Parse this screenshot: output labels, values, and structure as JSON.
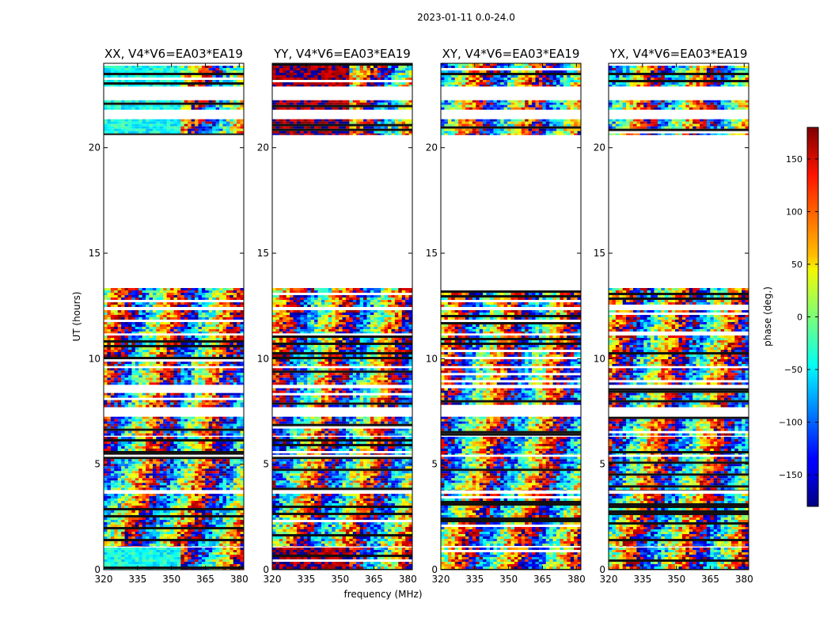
{
  "chart_data": {
    "type": "heatmap",
    "suptitle": "2023-01-11 0.0-24.0",
    "xlabel": "frequency (MHz)",
    "ylabel": "UT (hours)",
    "xlim": [
      320,
      382
    ],
    "ylim": [
      0,
      24
    ],
    "x_ticks": [
      320,
      335,
      350,
      365,
      380
    ],
    "y_ticks": [
      0,
      5,
      10,
      15,
      20
    ],
    "panels": [
      {
        "title": "XX, V4*V6=EA03*EA19",
        "low_freq_phase": -40
      },
      {
        "title": "YY, V4*V6=EA03*EA19",
        "low_freq_phase": 170
      },
      {
        "title": "XY, V4*V6=EA03*EA19",
        "low_freq_phase": null
      },
      {
        "title": "YX, V4*V6=EA03*EA19",
        "low_freq_phase": null
      }
    ],
    "data_blocks_ut_hours": [
      [
        0.0,
        1.05
      ],
      [
        1.1,
        3.6
      ],
      [
        3.75,
        5.35
      ],
      [
        5.45,
        6.3
      ],
      [
        6.35,
        7.25
      ],
      [
        7.7,
        8.6
      ],
      [
        8.75,
        9.55
      ],
      [
        9.65,
        11.1
      ],
      [
        11.2,
        12.3
      ],
      [
        12.45,
        13.35
      ],
      [
        20.6,
        21.35
      ],
      [
        21.8,
        22.25
      ],
      [
        22.9,
        24.0
      ]
    ],
    "colorbar": {
      "label": "phase (deg.)",
      "range": [
        -180,
        180
      ],
      "ticks": [
        -150,
        -100,
        -50,
        0,
        50,
        100,
        150
      ],
      "colormap": "jet"
    }
  }
}
